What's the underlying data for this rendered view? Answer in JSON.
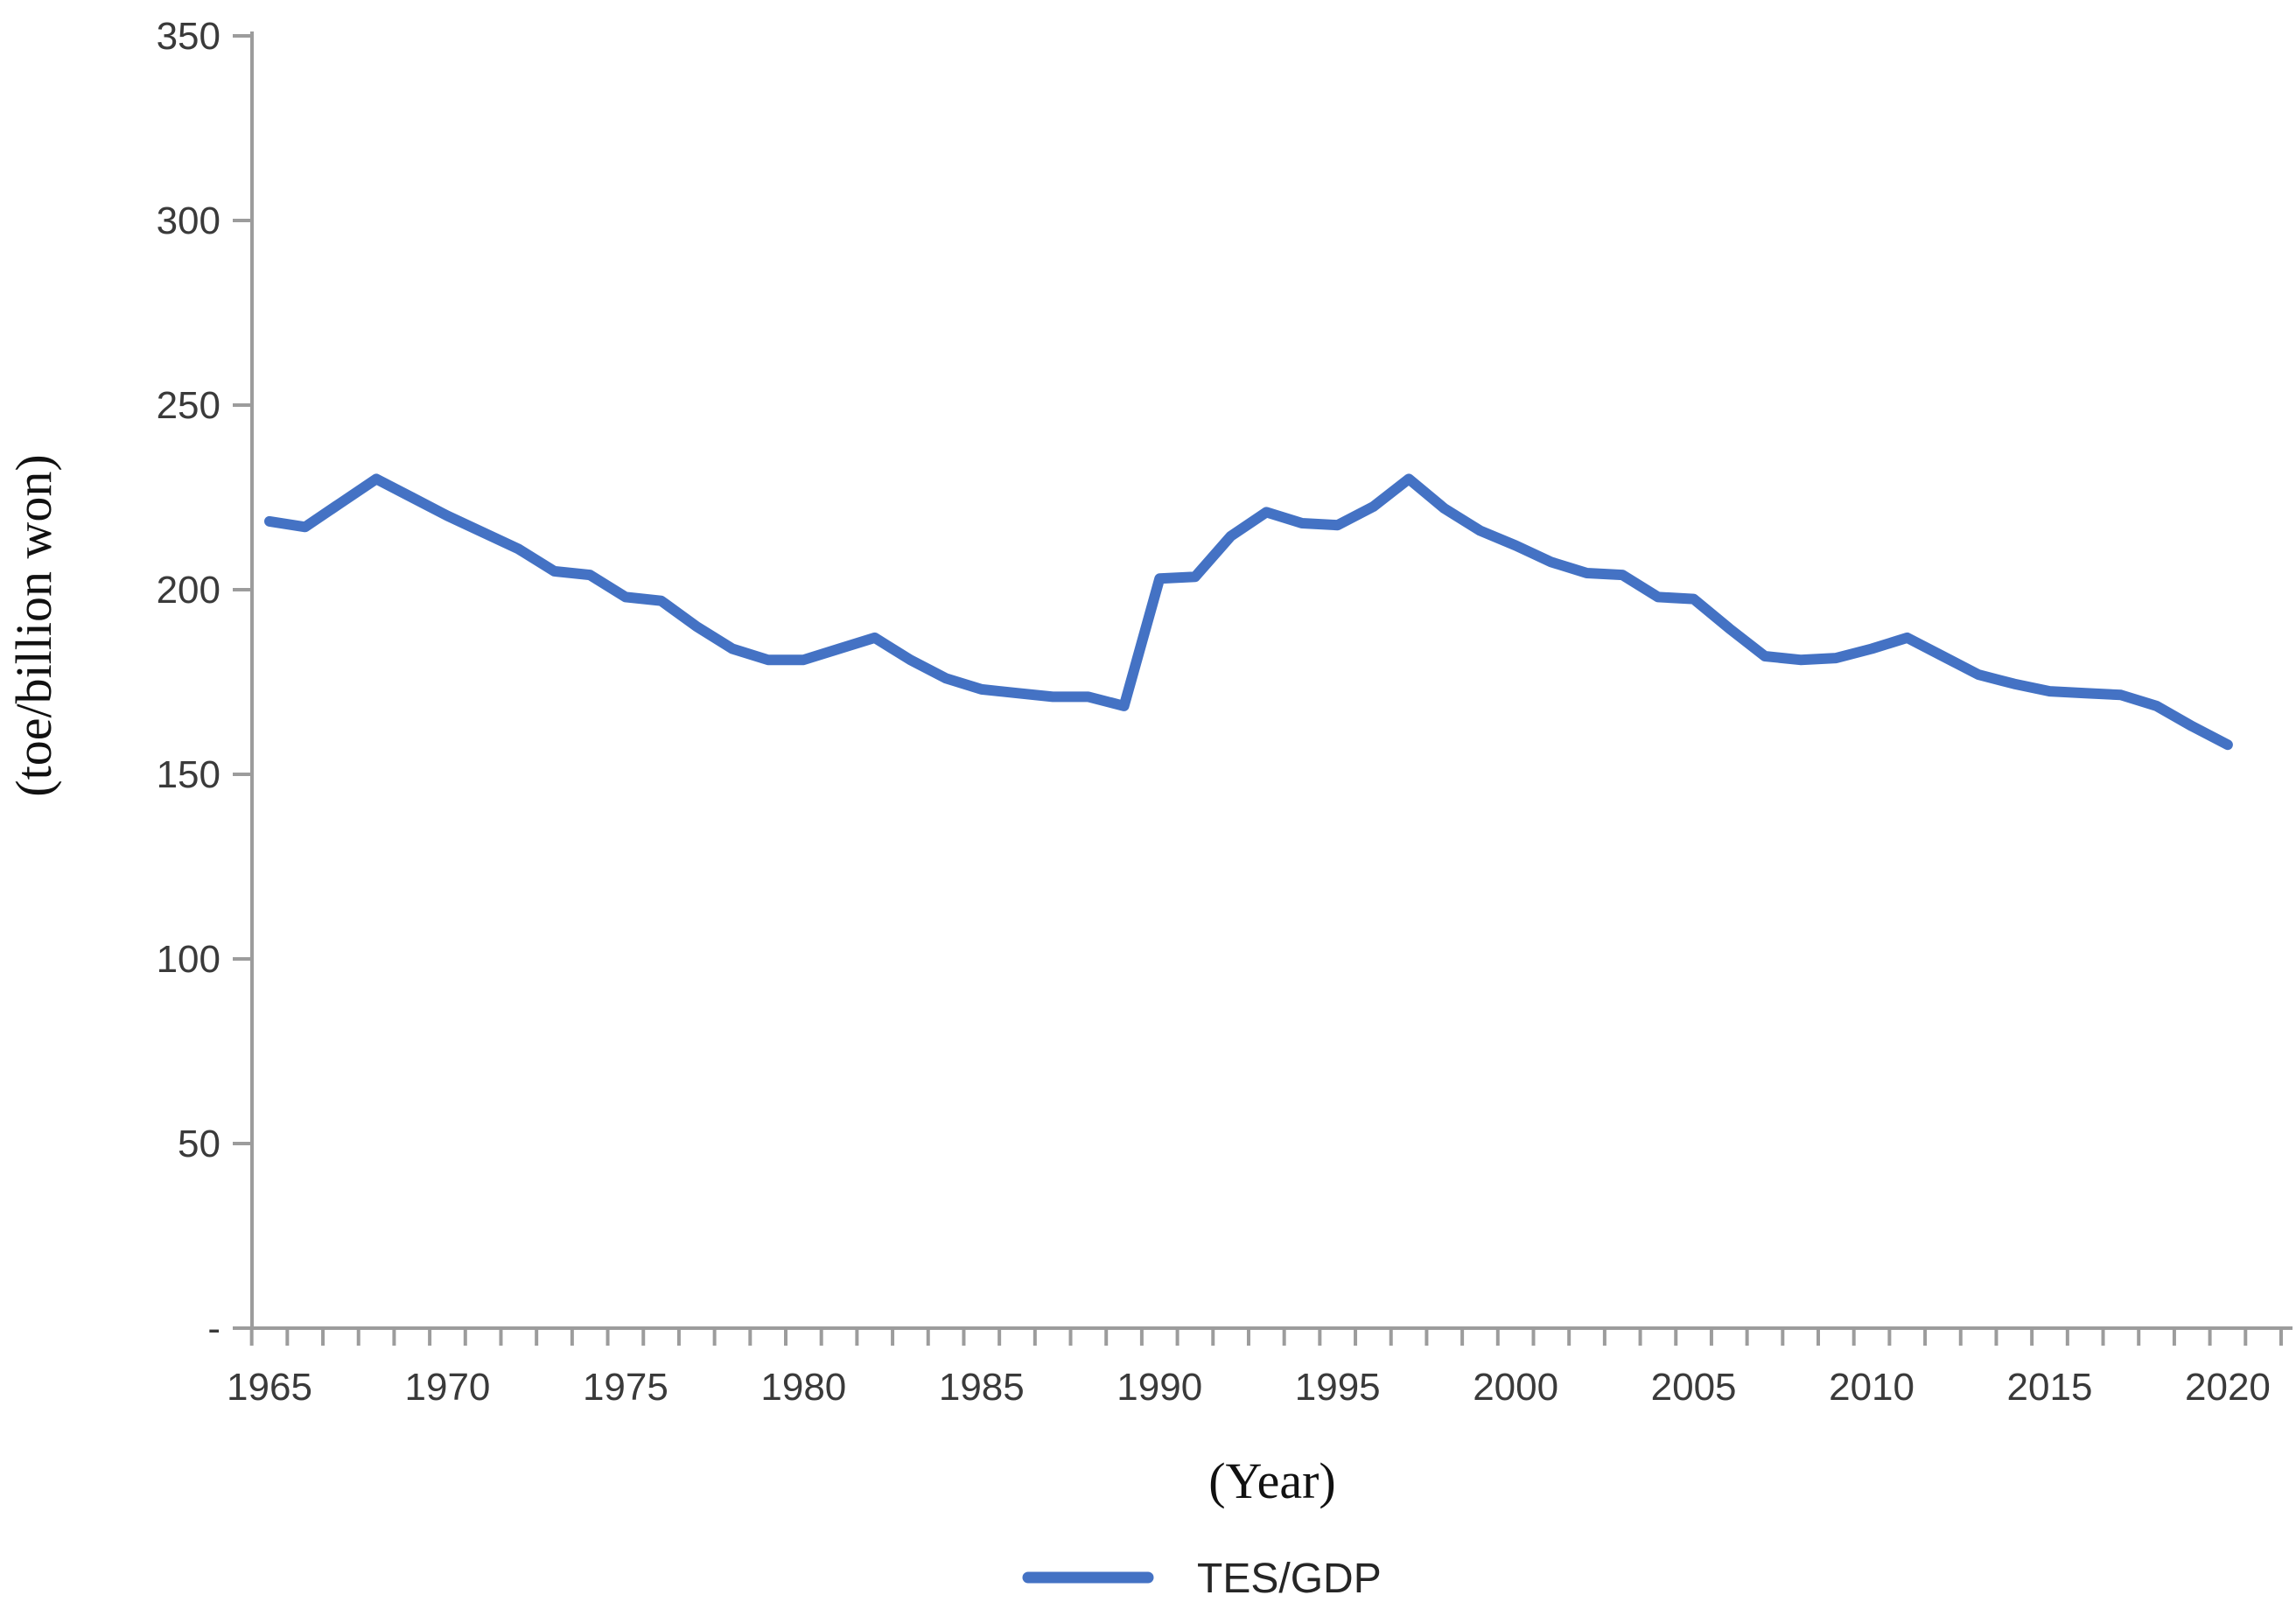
{
  "chart_data": {
    "type": "line",
    "title": "",
    "xlabel": "(Year)",
    "ylabel": "(toe/billion won)",
    "grid": false,
    "legend_position": "bottom-center",
    "ylim": [
      0,
      350
    ],
    "ytick_values": [
      0,
      50,
      100,
      150,
      200,
      250,
      300,
      350
    ],
    "ytick_labels": [
      "-",
      "50",
      "100",
      "150",
      "200",
      "250",
      "300",
      "350"
    ],
    "xtick_label_years": [
      1965,
      1970,
      1975,
      1980,
      1985,
      1990,
      1995,
      2000,
      2005,
      2010,
      2015,
      2020
    ],
    "x_range": [
      1965,
      2020
    ],
    "series": [
      {
        "name": "TES/GDP",
        "color": "#4472C4",
        "x": [
          1965,
          1966,
          1967,
          1968,
          1969,
          1970,
          1971,
          1972,
          1973,
          1974,
          1975,
          1976,
          1977,
          1978,
          1979,
          1980,
          1981,
          1982,
          1983,
          1984,
          1985,
          1986,
          1987,
          1988,
          1989,
          1990,
          1991,
          1992,
          1993,
          1994,
          1995,
          1996,
          1997,
          1998,
          1999,
          2000,
          2001,
          2002,
          2003,
          2004,
          2005,
          2006,
          2007,
          2008,
          2009,
          2010,
          2011,
          2012,
          2013,
          2014,
          2015,
          2016,
          2017,
          2018,
          2019,
          2020
        ],
        "values": [
          218.5,
          217,
          223.5,
          230,
          225,
          220,
          215.5,
          211,
          205,
          204,
          198,
          197,
          190,
          184,
          181,
          181,
          184,
          187,
          181,
          176,
          173,
          172,
          171,
          171,
          168.5,
          203,
          203.5,
          214.5,
          221,
          218,
          217.5,
          222.5,
          230,
          222,
          216,
          212,
          207.5,
          204.5,
          204,
          198,
          197.5,
          189.5,
          182,
          181,
          181.5,
          184,
          187,
          182,
          177,
          174.5,
          172.5,
          172,
          171.5,
          168.5,
          163,
          158
        ]
      }
    ]
  },
  "colors": {
    "line": "#4472C4",
    "axis": "#9c9c9c",
    "tick_text": "#3a3a3a",
    "title_text": "#111111",
    "background": "#ffffff"
  }
}
